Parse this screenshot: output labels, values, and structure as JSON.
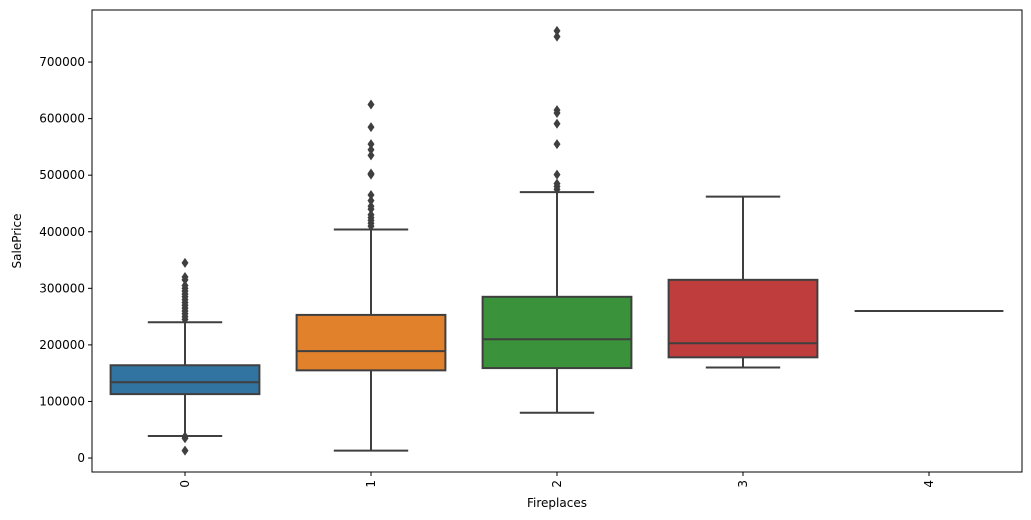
{
  "chart_data": {
    "type": "box",
    "title": "",
    "xlabel": "Fireplaces",
    "ylabel": "SalePrice",
    "ylim": [
      -24700,
      792000
    ],
    "yticks": [
      0,
      100000,
      200000,
      300000,
      400000,
      500000,
      600000,
      700000
    ],
    "grid": false,
    "edge_color": "#3f3f3f",
    "categories": [
      "0",
      "1",
      "2",
      "3",
      "4"
    ],
    "boxes": [
      {
        "category": "0",
        "color": "#3274a1",
        "whisker_low": 39000,
        "q1": 113000,
        "median": 134000,
        "q3": 164000,
        "whisker_high": 240000,
        "outliers": [
          13000,
          35000,
          38000,
          245000,
          250000,
          255000,
          260000,
          265000,
          270000,
          275000,
          280000,
          285000,
          290000,
          295000,
          300000,
          305000,
          315000,
          320000,
          345000
        ]
      },
      {
        "category": "1",
        "color": "#e1812c",
        "whisker_low": 13000,
        "q1": 155000,
        "median": 189000,
        "q3": 253000,
        "whisker_high": 404000,
        "outliers": [
          410000,
          415000,
          420000,
          425000,
          430000,
          440000,
          445000,
          455000,
          465000,
          501000,
          503000,
          535000,
          545000,
          555000,
          585000,
          625000
        ]
      },
      {
        "category": "2",
        "color": "#3a923a",
        "whisker_low": 80000,
        "q1": 159000,
        "median": 210000,
        "q3": 285000,
        "whisker_high": 470000,
        "outliers": [
          475000,
          480000,
          485000,
          501000,
          555000,
          591000,
          610000,
          615000,
          745000,
          755000
        ]
      },
      {
        "category": "3",
        "color": "#c03d3e",
        "whisker_low": 160000,
        "q1": 178000,
        "median": 203000,
        "q3": 315000,
        "whisker_high": 462000,
        "outliers": []
      },
      {
        "category": "4",
        "color": "#9372b2",
        "whisker_low": 260000,
        "q1": 260000,
        "median": 260000,
        "q3": 260000,
        "whisker_high": 260000,
        "outliers": []
      }
    ]
  }
}
